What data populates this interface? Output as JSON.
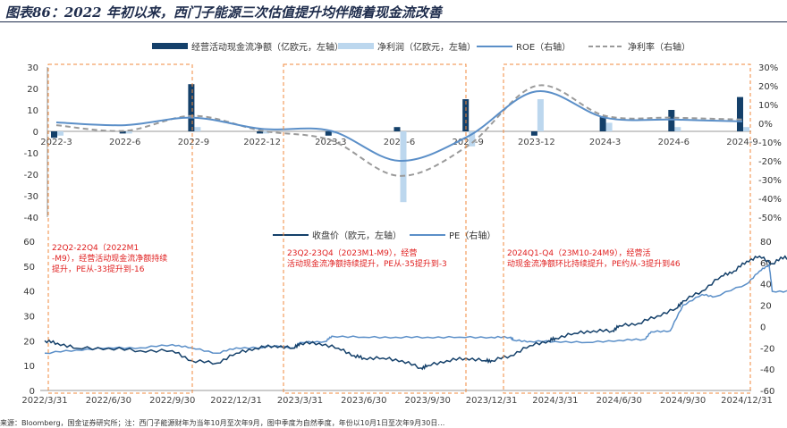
{
  "title": "图表86：2022 年初以来，西门子能源三次估值提升均伴随着现金流改善",
  "source_text": "来源：Bloomberg，国金证券研究所；注：西门子能源财年为当年10月至次年9月，图中季度为自然季度，年份以10月1日至次年9月30日…",
  "chart_data": [
    {
      "type": "bar",
      "legend": [
        "经营活动现金流净额（亿欧元，左轴）",
        "净利润（亿欧元，左轴）",
        "ROE（右轴）",
        "净利率（右轴）"
      ],
      "categories": [
        "2022-3",
        "2022-6",
        "2022-9",
        "2022-12",
        "2023-3",
        "2023-6",
        "2023-9",
        "2023-12",
        "2024-3",
        "2024-6",
        "2024-9"
      ],
      "left_axis": {
        "ticks": [
          30,
          20,
          10,
          0,
          -10,
          -20,
          -30,
          -40
        ],
        "range": [
          -40,
          30
        ]
      },
      "right_axis": {
        "ticks": [
          "30%",
          "20%",
          "10%",
          "0%",
          "-10%",
          "-20%",
          "-30%",
          "-40%",
          "-50%"
        ],
        "range": [
          -50,
          30
        ]
      },
      "series": [
        {
          "name": "经营活动现金流净额（亿欧元，左轴）",
          "kind": "bar",
          "axis": "left",
          "values": [
            -3,
            -1,
            22,
            -1,
            -2,
            2,
            15,
            -2,
            7,
            10,
            16
          ]
        },
        {
          "name": "净利润（亿欧元，左轴）",
          "kind": "bar",
          "axis": "left",
          "values": [
            -2,
            -1,
            2,
            -1,
            -1,
            -33,
            -7,
            15,
            4,
            2,
            2
          ]
        },
        {
          "name": "ROE（右轴）",
          "kind": "line",
          "axis": "right",
          "values": [
            0.5,
            -1,
            3,
            -3,
            -4,
            -20,
            -7,
            17,
            3,
            2,
            1
          ]
        },
        {
          "name": "净利率（右轴）",
          "kind": "line",
          "axis": "right",
          "values": [
            -1,
            -4,
            4,
            -4,
            -9,
            -28,
            -12,
            20,
            4,
            3,
            2
          ]
        }
      ],
      "colors": {
        "ocf": "#14406a",
        "np": "#bcd7ee",
        "roe": "#5b8fc8",
        "nm": "#9a9a9a"
      }
    },
    {
      "type": "line",
      "legend": [
        "收盘价（欧元，左轴）",
        "PE（右轴）"
      ],
      "x_ticks": [
        "2022/3/31",
        "2022/6/30",
        "2022/9/30",
        "2022/12/31",
        "2023/3/31",
        "2023/6/30",
        "2023/9/30",
        "2023/12/31",
        "2024/3/31",
        "2024/6/30",
        "2024/9/30",
        "2024/12/31"
      ],
      "left_axis": {
        "ticks": [
          60,
          50,
          40,
          30,
          20,
          10,
          0
        ],
        "range": [
          0,
          60
        ]
      },
      "right_axis": {
        "ticks": [
          80,
          60,
          40,
          20,
          0,
          -20,
          -40,
          -60
        ],
        "range": [
          -60,
          80
        ]
      },
      "series": [
        {
          "name": "收盘价（欧元，左轴）",
          "axis": "left",
          "x": [
            0,
            0.2,
            0.5,
            1,
            1.5,
            2,
            2.3,
            2.7,
            3,
            3.3,
            3.6,
            3.9,
            4,
            4.3,
            4.6,
            4.85,
            5,
            5.3,
            5.6,
            5.9,
            6,
            6.3,
            6.6,
            6.9,
            7,
            7.3,
            7.6,
            7.9,
            8,
            8.3,
            8.6,
            8.9,
            9,
            9.3,
            9.6,
            9.9,
            10,
            10.3,
            10.6,
            10.8,
            11,
            11.2,
            11.4,
            11.6,
            11.75
          ],
          "y": [
            20,
            19,
            17,
            17,
            16,
            16,
            12,
            11,
            15,
            17,
            18,
            17,
            19,
            19,
            17,
            14,
            13,
            13,
            12,
            9,
            10,
            12,
            13,
            12,
            12,
            14,
            18,
            20,
            21,
            23,
            24,
            24,
            26,
            27,
            30,
            33,
            36,
            40,
            46,
            48,
            52,
            54,
            51,
            54,
            51
          ]
        },
        {
          "name": "PE（右轴）",
          "axis": "right",
          "x": [
            0,
            0.5,
            1,
            1.5,
            2,
            2.3,
            2.7,
            3,
            3.4,
            3.5,
            3.9,
            4,
            4.4,
            4.5,
            5,
            5.5,
            6,
            6.5,
            7,
            7.3,
            7.35,
            7.6,
            8,
            8.5,
            9,
            9.4,
            9.5,
            9.8,
            10,
            10.3,
            10.5,
            11,
            11.2,
            11.35,
            11.4,
            11.75
          ],
          "y": [
            -25,
            -22,
            -20,
            -20,
            -17,
            -20,
            -25,
            -20,
            -20,
            -18,
            -20,
            -15,
            -14,
            -9,
            -10,
            -10,
            -10,
            -10,
            -10,
            -10,
            -13,
            -14,
            -14,
            -15,
            -13,
            -12,
            -5,
            -4,
            20,
            30,
            28,
            40,
            52,
            58,
            33,
            33
          ]
        }
      ],
      "colors": {
        "price": "#14406a",
        "pe": "#5b8fc8"
      }
    }
  ],
  "annotations": [
    {
      "text": "22Q2-22Q4（2022M1-M9），经营活动现金流净额持续提升，PE从-33提升到-16"
    },
    {
      "text": "23Q2-23Q4（2023M1-M9），经营活动现金流净额持续提升，PE从-35提升到-3"
    },
    {
      "text": "2024Q1-Q4（23M10-24M9），经营活动现金流净额环比持续提升，PE约从-3提升到46"
    }
  ]
}
